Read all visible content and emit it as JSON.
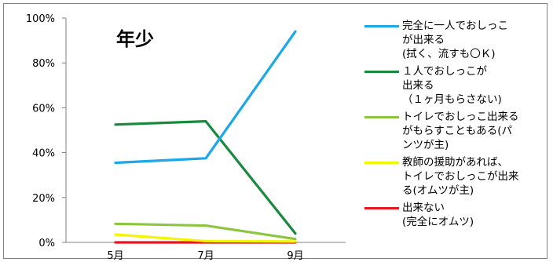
{
  "chart_data": {
    "type": "line",
    "title": "年少",
    "categories": [
      "5月",
      "7月",
      "9月"
    ],
    "y_ticks": [
      "0%",
      "20%",
      "40%",
      "60%",
      "80%",
      "100%"
    ],
    "ylim": [
      0,
      100
    ],
    "grid": false,
    "legend_position": "right",
    "series": [
      {
        "name": "完全に一人でおしっこ\nが出来る\n(拭く、流すも〇Ｋ)",
        "color": "#1ba8e8",
        "values": [
          35.5,
          37.5,
          94
        ]
      },
      {
        "name": "１人でおしっこが\n出来る\n（１ヶ月もらさない)",
        "color": "#178a3e",
        "values": [
          52.5,
          54,
          4
        ]
      },
      {
        "name": "トイレでおしっこ出来る\nがもらすこともある(パ\nンツが主)",
        "color": "#8cc63e",
        "values": [
          8.3,
          7.5,
          1.5
        ]
      },
      {
        "name": "教師の援助があれば、\nトイレでおしっこが出来\nる(オムツが主)",
        "color": "#f5f500",
        "values": [
          3.5,
          0.6,
          0.4
        ]
      },
      {
        "name": "出来ない\n(完全にオムツ)",
        "color": "#e8141e",
        "values": [
          0,
          0,
          0
        ]
      }
    ]
  }
}
